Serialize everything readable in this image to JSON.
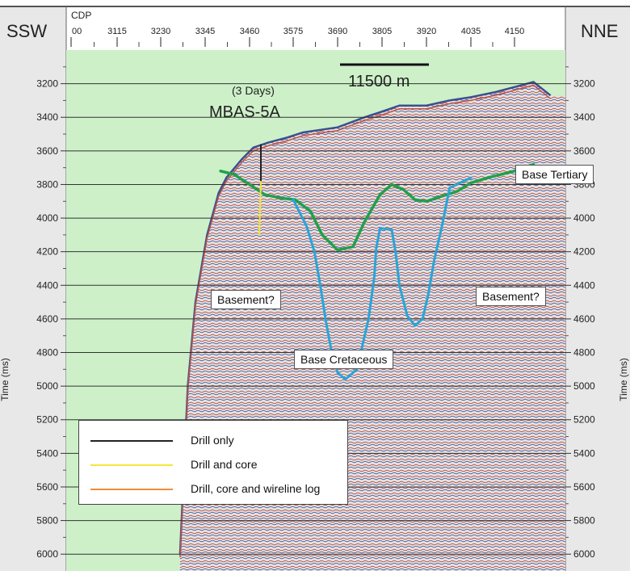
{
  "chart_data": {
    "type": "seismic-section",
    "left_label": "SSW",
    "right_label": "NNE",
    "x_axis_title": "CDP",
    "x_ticks": [
      "00",
      "3115",
      "3230",
      "3345",
      "3460",
      "3575",
      "3690",
      "3805",
      "3920",
      "4035",
      "4150"
    ],
    "y_ticks": [
      3200,
      3400,
      3600,
      3800,
      4000,
      4200,
      4400,
      4600,
      4800,
      5000,
      5200,
      5400,
      5600,
      5800,
      6000
    ],
    "y_range": [
      3000,
      6100
    ],
    "y_label_right": "Time (ms)",
    "y_label_left": "Time (ms)",
    "grid": "horizontal",
    "scale_bar": "11500 m",
    "well": {
      "name": "MBAS-5A",
      "note": "(3 Days)",
      "cdp": 3460,
      "top_ms": 3560,
      "drill_only_bottom_ms": 3780,
      "core_bottom_ms": 4100
    },
    "annotations": [
      {
        "text": "Base Tertiary"
      },
      {
        "text": "Basement?"
      },
      {
        "text": "Basement?"
      },
      {
        "text": "Base Cretaceous"
      }
    ],
    "horizons": [
      {
        "name": "Base Tertiary",
        "color": "#21a04a",
        "points": [
          [
            3385,
            3720
          ],
          [
            3420,
            3740
          ],
          [
            3460,
            3800
          ],
          [
            3500,
            3860
          ],
          [
            3540,
            3880
          ],
          [
            3580,
            3890
          ],
          [
            3620,
            3960
          ],
          [
            3650,
            4100
          ],
          [
            3690,
            4190
          ],
          [
            3730,
            4170
          ],
          [
            3760,
            4020
          ],
          [
            3800,
            3860
          ],
          [
            3830,
            3800
          ],
          [
            3860,
            3830
          ],
          [
            3890,
            3890
          ],
          [
            3920,
            3900
          ],
          [
            3960,
            3870
          ],
          [
            4000,
            3840
          ],
          [
            4035,
            3790
          ],
          [
            4080,
            3760
          ],
          [
            4150,
            3720
          ],
          [
            4200,
            3680
          ]
        ]
      },
      {
        "name": "Base Cretaceous",
        "color": "#2aa4d8",
        "points": [
          [
            3575,
            3890
          ],
          [
            3610,
            4050
          ],
          [
            3630,
            4200
          ],
          [
            3645,
            4400
          ],
          [
            3660,
            4620
          ],
          [
            3675,
            4800
          ],
          [
            3690,
            4920
          ],
          [
            3710,
            4960
          ],
          [
            3740,
            4900
          ],
          [
            3770,
            4600
          ],
          [
            3785,
            4350
          ],
          [
            3790,
            4180
          ],
          [
            3800,
            4060
          ],
          [
            3830,
            4070
          ],
          [
            3840,
            4200
          ],
          [
            3850,
            4400
          ],
          [
            3870,
            4580
          ],
          [
            3890,
            4640
          ],
          [
            3910,
            4600
          ],
          [
            3925,
            4450
          ],
          [
            3940,
            4250
          ],
          [
            3960,
            4050
          ],
          [
            3980,
            3820
          ],
          [
            4035,
            3760
          ]
        ]
      }
    ],
    "seafloor": [
      [
        3280,
        6000
      ],
      [
        3300,
        5000
      ],
      [
        3320,
        4500
      ],
      [
        3350,
        4100
      ],
      [
        3380,
        3850
      ],
      [
        3400,
        3760
      ],
      [
        3440,
        3650
      ],
      [
        3470,
        3580
      ],
      [
        3510,
        3550
      ],
      [
        3560,
        3520
      ],
      [
        3600,
        3490
      ],
      [
        3690,
        3460
      ],
      [
        3760,
        3400
      ],
      [
        3800,
        3370
      ],
      [
        3850,
        3330
      ],
      [
        3920,
        3330
      ],
      [
        3980,
        3300
      ],
      [
        4035,
        3280
      ],
      [
        4100,
        3250
      ],
      [
        4150,
        3220
      ],
      [
        4200,
        3190
      ],
      [
        4245,
        3270
      ]
    ],
    "legend": [
      {
        "label": "Drill only",
        "color": "#222222"
      },
      {
        "label": "Drill and core",
        "color": "#f5e43a"
      },
      {
        "label": "Drill, core and wireline log",
        "color": "#f28c3a"
      }
    ]
  }
}
